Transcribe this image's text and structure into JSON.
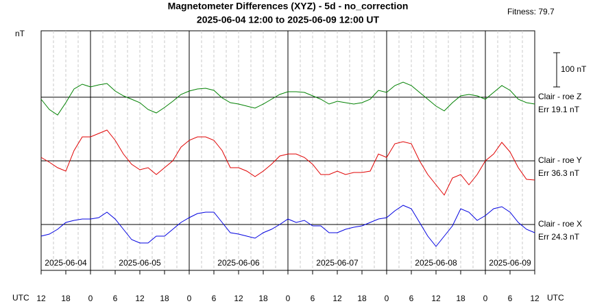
{
  "chart_data": {
    "type": "line",
    "title": "Magnetometer Differences (XYZ) - 5d - no_correction",
    "subtitle": "2025-06-04 12:00 to 2025-06-09 12:00 UT",
    "fitness": "Fitness: 79.7",
    "y_label": "nT",
    "x_label_left": "UTC",
    "x_label_right": "UTC",
    "scale_bar": {
      "value": 100,
      "label": "100 nT"
    },
    "xlim": [
      0,
      120
    ],
    "ylim": [
      0,
      700
    ],
    "xticks": [
      {
        "value": 0,
        "label": "12"
      },
      {
        "value": 6,
        "label": "18"
      },
      {
        "value": 12,
        "label": "0"
      },
      {
        "value": 18,
        "label": "6"
      },
      {
        "value": 24,
        "label": "12"
      },
      {
        "value": 30,
        "label": "18"
      },
      {
        "value": 36,
        "label": "0"
      },
      {
        "value": 42,
        "label": "6"
      },
      {
        "value": 48,
        "label": "12"
      },
      {
        "value": 54,
        "label": "18"
      },
      {
        "value": 60,
        "label": "0"
      },
      {
        "value": 66,
        "label": "6"
      },
      {
        "value": 72,
        "label": "12"
      },
      {
        "value": 78,
        "label": "18"
      },
      {
        "value": 84,
        "label": "0"
      },
      {
        "value": 90,
        "label": "6"
      },
      {
        "value": 96,
        "label": "12"
      },
      {
        "value": 102,
        "label": "18"
      },
      {
        "value": 108,
        "label": "0"
      },
      {
        "value": 114,
        "label": "6"
      },
      {
        "value": 120,
        "label": "12"
      }
    ],
    "date_labels": [
      {
        "x": 6,
        "label": "2025-06-04"
      },
      {
        "x": 24,
        "label": "2025-06-05"
      },
      {
        "x": 48,
        "label": "2025-06-06"
      },
      {
        "x": 72,
        "label": "2025-06-07"
      },
      {
        "x": 96,
        "label": "2025-06-08"
      },
      {
        "x": 114,
        "label": "2025-06-09"
      }
    ],
    "x": [
      0,
      2,
      4,
      6,
      8,
      10,
      12,
      14,
      16,
      18,
      20,
      22,
      24,
      26,
      28,
      30,
      32,
      34,
      36,
      38,
      40,
      42,
      44,
      46,
      48,
      50,
      52,
      54,
      56,
      58,
      60,
      62,
      64,
      66,
      68,
      70,
      72,
      74,
      76,
      78,
      80,
      82,
      84,
      86,
      88,
      90,
      92,
      94,
      96,
      98,
      100,
      102,
      104,
      106,
      108,
      110,
      112,
      114,
      116,
      118,
      120
    ],
    "series": [
      {
        "name": "Clair - roe Z",
        "error_label": "Err 19.1 nT",
        "color": "#008000",
        "baseline": 506,
        "values": [
          500,
          470,
          454,
          490,
          530,
          544,
          536,
          542,
          546,
          524,
          510,
          500,
          490,
          470,
          460,
          476,
          494,
          514,
          524,
          530,
          532,
          526,
          504,
          490,
          486,
          480,
          474,
          486,
          500,
          514,
          522,
          522,
          520,
          510,
          500,
          486,
          494,
          490,
          486,
          490,
          500,
          526,
          520,
          540,
          550,
          540,
          520,
          500,
          480,
          466,
          490,
          510,
          514,
          510,
          500,
          520,
          540,
          526,
          500,
          490,
          486
        ]
      },
      {
        "name": "Clair - roe Y",
        "error_label": "Err 36.3 nT",
        "color": "#e00000",
        "baseline": 320,
        "values": [
          330,
          316,
          300,
          290,
          350,
          390,
          390,
          400,
          410,
          380,
          340,
          310,
          294,
          300,
          280,
          300,
          320,
          360,
          380,
          390,
          390,
          380,
          350,
          300,
          300,
          290,
          274,
          290,
          310,
          334,
          340,
          340,
          330,
          310,
          280,
          280,
          290,
          280,
          286,
          286,
          290,
          340,
          330,
          370,
          376,
          370,
          320,
          280,
          250,
          220,
          270,
          280,
          250,
          280,
          320,
          340,
          374,
          346,
          300,
          266,
          264
        ]
      },
      {
        "name": "Clair - roe X",
        "error_label": "Err 24.3 nT",
        "color": "#0000e0",
        "baseline": 134,
        "values": [
          100,
          106,
          120,
          140,
          146,
          150,
          150,
          154,
          170,
          150,
          120,
          90,
          80,
          80,
          100,
          100,
          120,
          140,
          154,
          166,
          170,
          170,
          140,
          110,
          106,
          100,
          94,
          110,
          120,
          134,
          150,
          140,
          146,
          130,
          130,
          110,
          110,
          120,
          126,
          130,
          140,
          150,
          154,
          174,
          190,
          180,
          140,
          100,
          70,
          100,
          130,
          180,
          170,
          146,
          160,
          180,
          186,
          170,
          140,
          120,
          110
        ]
      }
    ]
  }
}
